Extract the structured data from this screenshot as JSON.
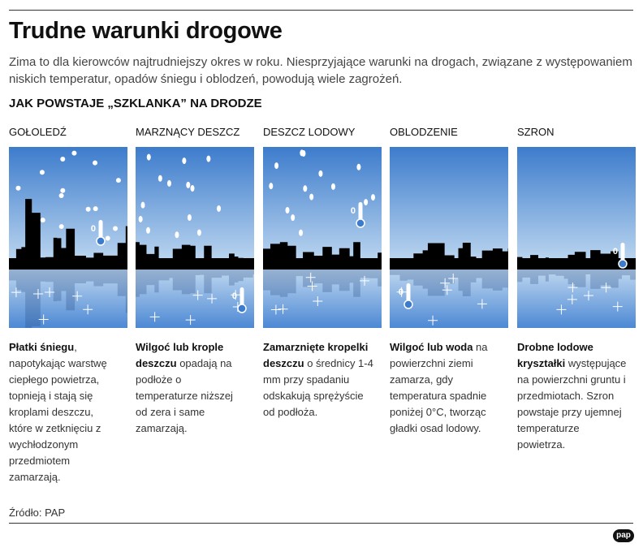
{
  "header": {
    "title": "Trudne warunki drogowe",
    "subtitle": "Zima to dla kierowców najtrudniejszy okres w roku. Niesprzyjające warunki na drogach, związane z występowaniem niskich temperatur, opadów śniegu i oblodzeń, powodują wiele zagrożeń."
  },
  "section_title": "JAK POWSTAJE „SZKLANKA” NA DRODZE",
  "panels": [
    {
      "label": "GOŁOLEDŹ",
      "thermometer": "0",
      "description": {
        "bold": "Płatki śniegu",
        "text": ", napotykając warstwę ciepłego powietrza, topnieją i stają się kroplami deszczu, które w zetknięciu z wychłodzonym przedmiotem zamarzają."
      }
    },
    {
      "label": "MARZNĄCY DESZCZ",
      "thermometer": "0",
      "description": {
        "bold": "Wilgoć lub krople deszczu",
        "text": " opadają na podłoże o temperaturze niższej od zera i same zamarzają."
      }
    },
    {
      "label": "DESZCZ LODOWY",
      "thermometer": "0",
      "description": {
        "bold": "Zamarznięte kropelki deszczu",
        "text": " o średnicy 1-4 mm przy spadaniu odskakują sprężyście od podłoża."
      }
    },
    {
      "label": "OBLODZENIE",
      "thermometer": "0",
      "description": {
        "bold": "Wilgoć lub woda",
        "text": " na powierzchni ziemi zamarza, gdy temperatura spadnie poniżej 0°C, tworząc gładki osad lodowy."
      }
    },
    {
      "label": "SZRON",
      "thermometer": "0",
      "description": {
        "bold": "Drobne lodowe kryształki",
        "text": " występujące na powierzchni gruntu i przedmiotach. Szron powstaje przy ujemnej temperaturze powietrza."
      }
    }
  ],
  "source": "Źródło: PAP",
  "logo": "pap"
}
